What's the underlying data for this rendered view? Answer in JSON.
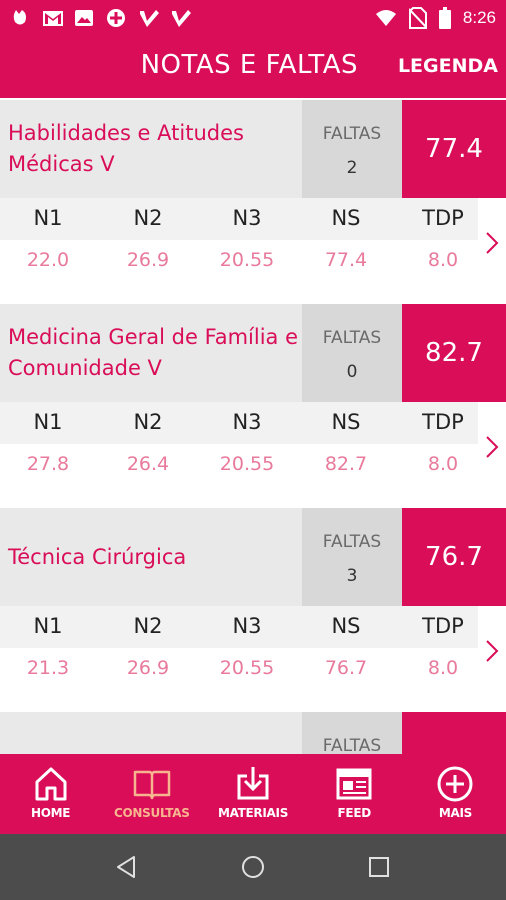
{
  "status_bar": {
    "time": "8:26",
    "left_icons": [
      "app-icon",
      "gmail-icon",
      "image-icon",
      "plus-circle-icon",
      "checkmark-app-icon",
      "checkmark-app-icon-2"
    ],
    "right_icons": [
      "wifi-icon",
      "no-sim-icon",
      "battery-icon"
    ]
  },
  "header": {
    "title": "NOTAS E FALTAS",
    "legend_label": "LEGENDA"
  },
  "columns": [
    "N1",
    "N2",
    "N3",
    "NS",
    "TDP"
  ],
  "faltas_label": "FALTAS",
  "subjects": [
    {
      "name": "Habilidades e Atitudes Médicas V",
      "faltas": "2",
      "grade": "77.4",
      "notes": [
        "22.0",
        "26.9",
        "20.55",
        "77.4",
        "8.0"
      ]
    },
    {
      "name": "Medicina Geral de Família e Comunidade V",
      "faltas": "0",
      "grade": "82.7",
      "notes": [
        "27.8",
        "26.4",
        "20.55",
        "82.7",
        "8.0"
      ]
    },
    {
      "name": "Técnica Cirúrgica",
      "faltas": "3",
      "grade": "76.7",
      "notes": [
        "21.3",
        "26.9",
        "20.55",
        "76.7",
        "8.0"
      ]
    }
  ],
  "bottom_nav": [
    {
      "label": "HOME",
      "icon": "home-icon"
    },
    {
      "label": "CONSULTAS",
      "icon": "book-icon",
      "active": true
    },
    {
      "label": "MATERIAIS",
      "icon": "download-icon"
    },
    {
      "label": "FEED",
      "icon": "newspaper-icon"
    },
    {
      "label": "MAIS",
      "icon": "plus-circle-icon"
    }
  ],
  "colors": {
    "brand": "#d90d58",
    "active_nav": "#f7b58f",
    "note_value": "#e87a9c"
  }
}
